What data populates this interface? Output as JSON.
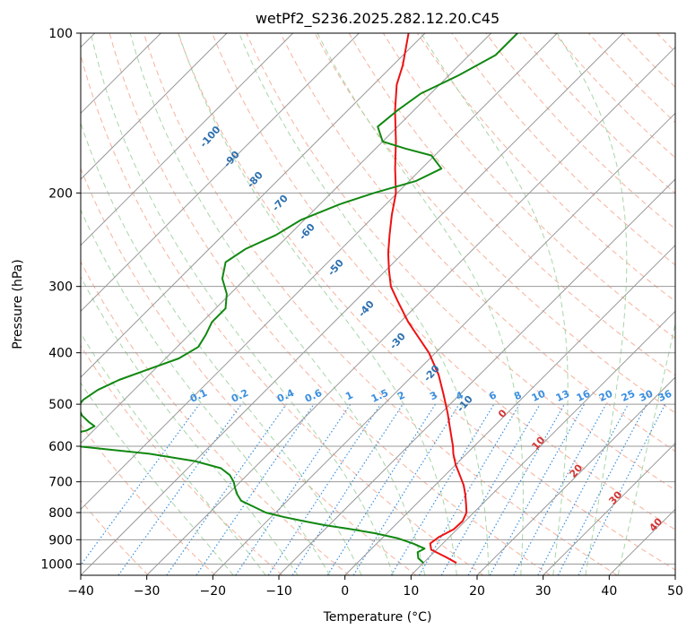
{
  "chart_data": {
    "type": "line",
    "title": "wetPf2_S236.2025.282.12.20.C45",
    "xlabel": "Temperature (°C)",
    "ylabel": "Pressure (hPa)",
    "x_scale": "skew-t",
    "y_scale": "log",
    "xlim": [
      -40,
      50
    ],
    "ylim": [
      1050,
      100
    ],
    "x_ticks": [
      -40,
      -30,
      -20,
      -10,
      0,
      10,
      20,
      30,
      40,
      50
    ],
    "y_ticks": [
      1000,
      900,
      800,
      700,
      600,
      500,
      400,
      300,
      200,
      100
    ],
    "grid": true,
    "colors": {
      "temperature": "#ee1111",
      "dewpoint": "#118811",
      "isotherm": "#999999",
      "dry_adiabat": "#f4a58c",
      "moist_adiabat": "#9fd19f",
      "mixing_ratio": "#3a8fe0",
      "dry_label": "#2b6fb0",
      "moist_label": "#d43333"
    },
    "series": [
      {
        "name": "temperature",
        "pressure": [
          995,
          970,
          940,
          915,
          890,
          860,
          830,
          800,
          770,
          740,
          710,
          680,
          650,
          620,
          600,
          560,
          520,
          480,
          440,
          400,
          380,
          350,
          320,
          300,
          280,
          260,
          240,
          220,
          200,
          180,
          160,
          140,
          125,
          115,
          100
        ],
        "values": [
          15.0,
          12.5,
          9.2,
          8.1,
          8.4,
          9.5,
          9.6,
          8.9,
          7.5,
          6.0,
          4.3,
          2.2,
          0.0,
          -2.0,
          -3.2,
          -6.0,
          -9.0,
          -12.4,
          -16.2,
          -21.0,
          -24.0,
          -28.8,
          -33.5,
          -36.8,
          -39.5,
          -42.2,
          -44.8,
          -47.5,
          -50.2,
          -54.0,
          -58.0,
          -62.8,
          -66.5,
          -68.5,
          -72.5
        ]
      },
      {
        "name": "dewpoint",
        "pressure": [
          995,
          975,
          950,
          935,
          915,
          895,
          875,
          860,
          845,
          830,
          815,
          800,
          780,
          760,
          740,
          720,
          700,
          680,
          660,
          640,
          620,
          600,
          590,
          580,
          570,
          560,
          550,
          540,
          525,
          505,
          490,
          470,
          450,
          430,
          410,
          390,
          370,
          350,
          330,
          310,
          290,
          270,
          255,
          240,
          225,
          210,
          200,
          190,
          180,
          170,
          165,
          160,
          150,
          140,
          130,
          120,
          110,
          100
        ],
        "values": [
          10.0,
          8.5,
          7.5,
          8.0,
          5.5,
          2.5,
          -1.8,
          -6.0,
          -10.6,
          -14.5,
          -18.2,
          -21.5,
          -24.2,
          -27.0,
          -28.5,
          -29.8,
          -31.0,
          -32.6,
          -35.0,
          -40.0,
          -48.0,
          -60.0,
          -63.5,
          -64.5,
          -63.0,
          -61.0,
          -60.5,
          -62.0,
          -64.0,
          -66.0,
          -66.2,
          -65.5,
          -63.8,
          -61.0,
          -58.0,
          -56.8,
          -57.5,
          -58.5,
          -58.5,
          -60.5,
          -63.5,
          -65.5,
          -64.5,
          -62.0,
          -60.5,
          -57.0,
          -53.5,
          -49.0,
          -47.0,
          -50.5,
          -55.5,
          -60.0,
          -63.0,
          -62.5,
          -61.5,
          -58.5,
          -56.0,
          -56.0
        ]
      }
    ],
    "dry_adiabat_labels": [
      "-100",
      "-90",
      "-80",
      "-70",
      "-60",
      "-50",
      "-40",
      "-30",
      "-20",
      "-10"
    ],
    "moist_adiabat_labels": [
      "0",
      "10",
      "20",
      "30",
      "40"
    ],
    "mixing_ratio_labels": [
      "0.1",
      "0.2",
      "0.4",
      "0.6",
      "1",
      "1.5",
      "2",
      "3",
      "4",
      "6",
      "8",
      "10",
      "13",
      "16",
      "20",
      "25",
      "30",
      "36"
    ]
  }
}
